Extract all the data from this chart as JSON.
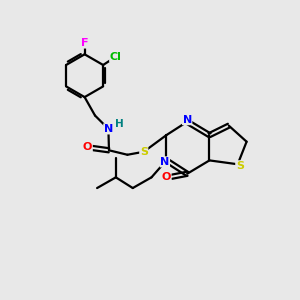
{
  "background_color": "#e8e8e8",
  "bond_color": "#000000",
  "atom_colors": {
    "F": "#ff00ff",
    "Cl": "#00bb00",
    "N": "#0000ff",
    "O": "#ff0000",
    "S": "#cccc00",
    "H": "#008080",
    "C": "#000000"
  },
  "figsize": [
    3.0,
    3.0
  ],
  "dpi": 100
}
